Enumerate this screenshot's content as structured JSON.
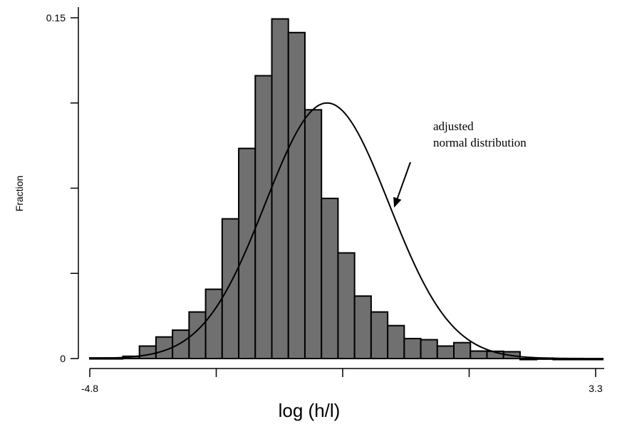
{
  "chart_data": {
    "type": "bar",
    "title": "",
    "xlabel": "log (h/l)",
    "ylabel": "Fraction",
    "xlim": [
      -4.8,
      3.3
    ],
    "ylim": [
      0,
      0.15
    ],
    "x_tick_labels": [
      "-4.8",
      "3.3"
    ],
    "y_tick_labels": [
      "0",
      "0.15"
    ],
    "y_ticks_unlabeled": [
      0.0375,
      0.075,
      0.1125
    ],
    "x_ticks_unlabeled": [
      -2.775,
      -0.75,
      1.275
    ],
    "grid": false,
    "legend": "none",
    "bin_width": 0.265,
    "bin_starts": [
      -4.8,
      -4.535,
      -4.27,
      -4.005,
      -3.74,
      -3.475,
      -3.21,
      -2.945,
      -2.68,
      -2.415,
      -2.15,
      -1.885,
      -1.62,
      -1.355,
      -1.09,
      -0.825,
      -0.56,
      -0.295,
      -0.03,
      0.235,
      0.5,
      0.765,
      1.03,
      1.295,
      1.56,
      1.825,
      2.09,
      2.355,
      2.62,
      2.885,
      3.15
    ],
    "values": [
      0.0003,
      0.0003,
      0.001,
      0.0055,
      0.0095,
      0.0125,
      0.0205,
      0.0305,
      0.0615,
      0.0925,
      0.1245,
      0.1495,
      0.1435,
      0.1095,
      0.0705,
      0.0465,
      0.0275,
      0.0205,
      0.0145,
      0.0088,
      0.0083,
      0.0055,
      0.007,
      0.0033,
      0.0032,
      0.003,
      -0.0003,
      0.0002,
      -0.0003,
      -0.0003,
      -0.0003
    ],
    "curve": {
      "name": "adjusted normal distribution",
      "distribution": "normal",
      "mean": -1.0,
      "sd": 0.99,
      "peak_fraction": 0.1125
    },
    "annotations": [
      {
        "text_lines": [
          "adjusted",
          "normal distribution"
        ],
        "arrow_to": [
          0.08,
          0.067
        ]
      }
    ]
  },
  "colors": {
    "bar_fill": "#707070",
    "bar_stroke": "#000000",
    "curve": "#000000",
    "axis": "#000000"
  }
}
